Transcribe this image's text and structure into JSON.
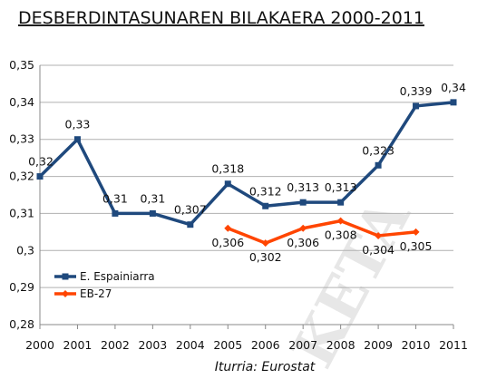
{
  "chart_data": {
    "type": "line",
    "title": "DESBERDINTASUNAREN BILAKAERA 2000-2011",
    "source": "Iturria: Eurostat",
    "watermark": "KETA",
    "x": [
      "2000",
      "2001",
      "2002",
      "2003",
      "2004",
      "2005",
      "2006",
      "2007",
      "2008",
      "2009",
      "2010",
      "2011"
    ],
    "ylim": [
      0.28,
      0.35
    ],
    "yticks": [
      "0,28",
      "0,29",
      "0,3",
      "0,31",
      "0,32",
      "0,33",
      "0,34",
      "0,35"
    ],
    "legend_position": "bottom-left",
    "series": [
      {
        "name": "E. Espainiarra",
        "color": "#1f497d",
        "marker": "square",
        "values": [
          0.32,
          0.33,
          0.31,
          0.31,
          0.307,
          0.318,
          0.312,
          0.313,
          0.313,
          0.323,
          0.339,
          0.34
        ],
        "labels": [
          "0,32",
          "0,33",
          "0,31",
          "0,31",
          "0,307",
          "0,318",
          "0,312",
          "0,313",
          "0,313",
          "0,323",
          "0,339",
          "0,34"
        ]
      },
      {
        "name": "EB-27",
        "color": "#ff4500",
        "marker": "diamond",
        "values": [
          null,
          null,
          null,
          null,
          null,
          0.306,
          0.302,
          0.306,
          0.308,
          0.304,
          0.305,
          null
        ],
        "labels": [
          null,
          null,
          null,
          null,
          null,
          "0,306",
          "0,302",
          "0,306",
          "0,308",
          "0,304",
          "0,305",
          null
        ]
      }
    ]
  }
}
